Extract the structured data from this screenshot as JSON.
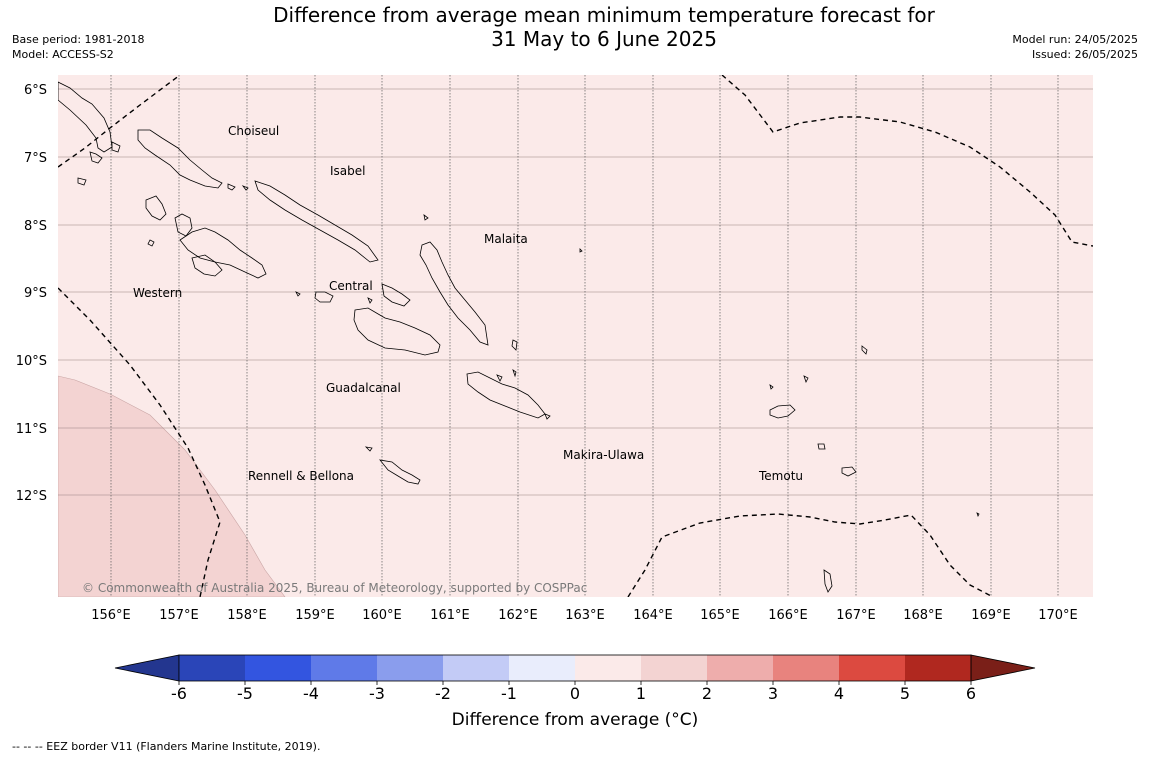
{
  "title_line1": "Difference from average mean minimum temperature forecast for",
  "title_line2": "31 May to 6 June 2025",
  "base_period": "Base period: 1981-2018",
  "model": "Model: ACCESS-S2",
  "model_run": "Model run: 24/05/2025",
  "issued": "Issued: 26/05/2025",
  "copyright": "© Commonwealth of Australia 2025, Bureau of Meteorology, supported by COSPPac",
  "footer_note": "--  --  -- EEZ border V11 (Flanders Marine Institute, 2019).",
  "colorbar_label": "Difference from average (°C)",
  "colors": {
    "background_anomaly": "#fbeae9",
    "anomaly_1_2": "#f3d3d2",
    "land_outline": "#000000"
  },
  "map": {
    "lat_labels": [
      "6°S",
      "7°S",
      "8°S",
      "9°S",
      "10°S",
      "11°S",
      "12°S"
    ],
    "lon_labels": [
      "156°E",
      "157°E",
      "158°E",
      "159°E",
      "160°E",
      "161°E",
      "162°E",
      "163°E",
      "164°E",
      "165°E",
      "166°E",
      "167°E",
      "168°E",
      "169°E",
      "170°E"
    ],
    "provinces": [
      "Choiseul",
      "Isabel",
      "Malaita",
      "Western",
      "Central",
      "Guadalcanal",
      "Makira-Ulawa",
      "Rennell & Bellona",
      "Temotu"
    ]
  },
  "colorbar": {
    "ticks": [
      "-6",
      "-5",
      "-4",
      "-3",
      "-2",
      "-1",
      "0",
      "1",
      "2",
      "3",
      "4",
      "5",
      "6"
    ],
    "colors": [
      "#23368f",
      "#2a45b8",
      "#3355e0",
      "#5f7ae8",
      "#8a9ded",
      "#c3cbf6",
      "#e9edfc",
      "#fbeae9",
      "#f3d3d2",
      "#eeadac",
      "#e8837e",
      "#dc4a40",
      "#b0281f",
      "#7a1f18"
    ]
  }
}
